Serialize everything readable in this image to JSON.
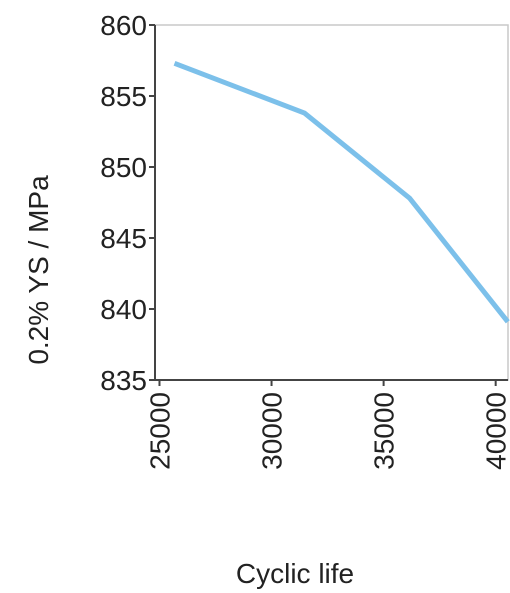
{
  "chart_data": {
    "type": "line",
    "x_label": "Cyclic life",
    "y_label": "0.2% YS / MPa",
    "x": [
      25670,
      31470,
      36160,
      40540
    ],
    "series": [
      {
        "color": "#7cc0ea",
        "values": [
          857.3,
          853.8,
          847.8,
          839.1
        ]
      }
    ],
    "xlim": [
      24800,
      40550
    ],
    "xticks": [
      25000,
      30000,
      35000,
      40000
    ],
    "ylim": [
      835,
      860
    ],
    "yticks": [
      835,
      840,
      845,
      850,
      855,
      860
    ],
    "grid": false
  }
}
